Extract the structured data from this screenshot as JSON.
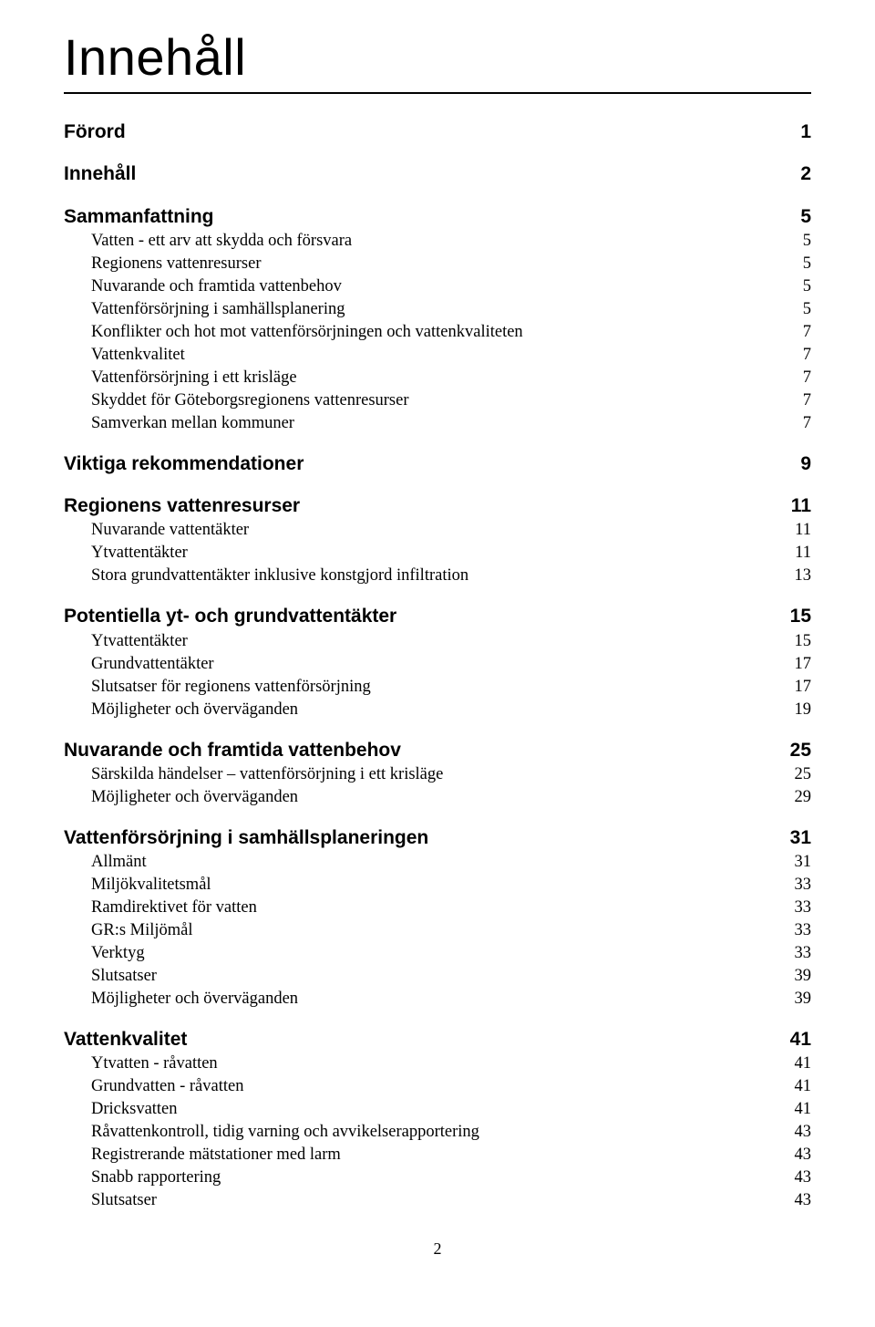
{
  "page_title": "Innehåll",
  "footer_page_number": "2",
  "sections": [
    {
      "title": "Förord",
      "page": "1",
      "items": []
    },
    {
      "title": "Innehåll",
      "page": "2",
      "items": []
    },
    {
      "title": "Sammanfattning",
      "page": "5",
      "items": [
        {
          "label": "Vatten - ett arv att skydda och försvara",
          "page": "5"
        },
        {
          "label": "Regionens vattenresurser",
          "page": "5"
        },
        {
          "label": "Nuvarande och framtida vattenbehov",
          "page": "5"
        },
        {
          "label": "Vattenförsörjning i samhällsplanering",
          "page": "5"
        },
        {
          "label": "Konflikter och hot mot vattenförsörjningen och vattenkvaliteten",
          "page": "7"
        },
        {
          "label": "Vattenkvalitet",
          "page": "7"
        },
        {
          "label": "Vattenförsörjning i ett krisläge",
          "page": "7"
        },
        {
          "label": "Skyddet för Göteborgsregionens vattenresurser",
          "page": "7"
        },
        {
          "label": "Samverkan mellan kommuner",
          "page": "7"
        }
      ]
    },
    {
      "title": "Viktiga rekommendationer",
      "page": "9",
      "items": []
    },
    {
      "title": "Regionens vattenresurser",
      "page": "11",
      "items": [
        {
          "label": "Nuvarande vattentäkter",
          "page": "11"
        },
        {
          "label": "Ytvattentäkter",
          "page": "11"
        },
        {
          "label": "Stora grundvattentäkter inklusive konstgjord infiltration",
          "page": "13"
        }
      ]
    },
    {
      "title": "Potentiella yt- och grundvattentäkter",
      "page": "15",
      "items": [
        {
          "label": "Ytvattentäkter",
          "page": "15"
        },
        {
          "label": "Grundvattentäkter",
          "page": "17"
        },
        {
          "label": "Slutsatser för regionens vattenförsörjning",
          "page": "17"
        },
        {
          "label": "Möjligheter och överväganden",
          "page": "19"
        }
      ]
    },
    {
      "title": "Nuvarande och framtida vattenbehov",
      "page": "25",
      "items": [
        {
          "label": "Särskilda händelser – vattenförsörjning i ett krisläge",
          "page": "25"
        },
        {
          "label": "Möjligheter och överväganden",
          "page": "29"
        }
      ]
    },
    {
      "title": "Vattenförsörjning i samhällsplaneringen",
      "page": "31",
      "items": [
        {
          "label": "Allmänt",
          "page": "31"
        },
        {
          "label": "Miljökvalitetsmål",
          "page": "33"
        },
        {
          "label": "Ramdirektivet för vatten",
          "page": "33"
        },
        {
          "label": "GR:s Miljömål",
          "page": "33"
        },
        {
          "label": "Verktyg",
          "page": "33"
        },
        {
          "label": "Slutsatser",
          "page": "39"
        },
        {
          "label": "Möjligheter och överväganden",
          "page": "39"
        }
      ]
    },
    {
      "title": "Vattenkvalitet",
      "page": "41",
      "items": [
        {
          "label": "Ytvatten - råvatten",
          "page": "41"
        },
        {
          "label": "Grundvatten - råvatten",
          "page": "41"
        },
        {
          "label": "Dricksvatten",
          "page": "41"
        },
        {
          "label": "Råvattenkontroll, tidig varning och avvikelserapportering",
          "page": "43"
        },
        {
          "label": "Registrerande mätstationer med larm",
          "page": "43"
        },
        {
          "label": "Snabb rapportering",
          "page": "43"
        },
        {
          "label": "Slutsatser",
          "page": "43"
        }
      ]
    }
  ]
}
